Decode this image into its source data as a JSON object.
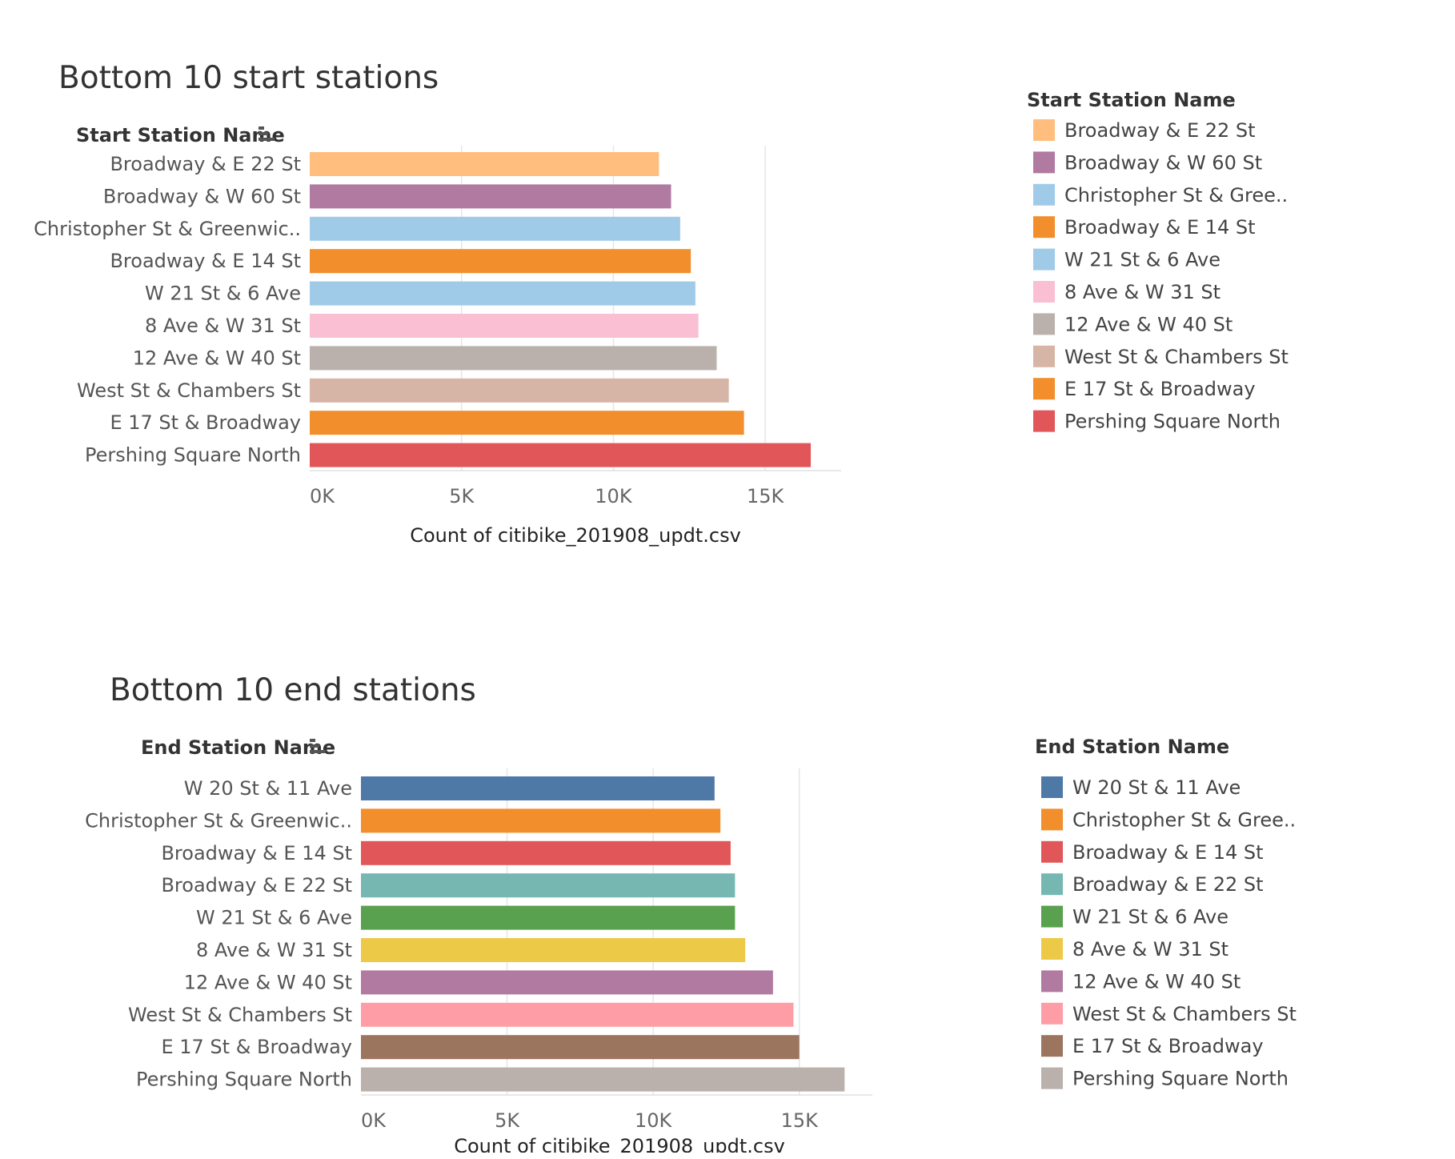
{
  "chart_data": [
    {
      "type": "bar",
      "orientation": "horizontal",
      "title": "Bottom 10 start stations",
      "category_field": "Start Station Name",
      "xlabel": "Count of citibike_201908_updt.csv",
      "xlim": [
        0,
        17500
      ],
      "xticks": [
        0,
        5000,
        10000,
        15000
      ],
      "xtick_labels": [
        "0K",
        "5K",
        "10K",
        "15K"
      ],
      "grid": "vertical",
      "legend_position": "right",
      "legend_title": "Start Station Name",
      "categories": [
        "Broadway & E 22 St",
        "Broadway & W 60 St",
        "Christopher St & Greenwic..",
        "Broadway & E 14 St",
        "W 21 St & 6 Ave",
        "8 Ave & W 31 St",
        "12 Ave & W 40 St",
        "West St & Chambers St",
        "E 17 St & Broadway",
        "Pershing Square North"
      ],
      "values": [
        11500,
        11900,
        12200,
        12550,
        12700,
        12800,
        13400,
        13800,
        14300,
        16500
      ],
      "colors": [
        "#ffbe7d",
        "#b07aa1",
        "#a0cbe8",
        "#f28e2b",
        "#a0cbe8",
        "#fabfd2",
        "#bab0ac",
        "#d7b5a6",
        "#f28e2b",
        "#e15759"
      ],
      "legend": [
        "Broadway & E 22 St",
        "Broadway & W 60 St",
        "Christopher St & Gree..",
        "Broadway & E 14 St",
        "W 21 St & 6 Ave",
        "8 Ave & W 31 St",
        "12 Ave & W 40 St",
        "West St & Chambers St",
        "E 17 St & Broadway",
        "Pershing Square North"
      ]
    },
    {
      "type": "bar",
      "orientation": "horizontal",
      "title": "Bottom 10 end stations",
      "category_field": "End Station Name",
      "xlabel": "Count of citibike_201908_updt.csv",
      "xlim": [
        0,
        17500
      ],
      "xticks": [
        0,
        5000,
        10000,
        15000
      ],
      "xtick_labels": [
        "0K",
        "5K",
        "10K",
        "15K"
      ],
      "grid": "vertical",
      "legend_position": "right",
      "legend_title": "End Station Name",
      "categories": [
        "W 20 St & 11 Ave",
        "Christopher St & Greenwic..",
        "Broadway & E 14 St",
        "Broadway & E 22 St",
        "W 21 St & 6 Ave",
        "8 Ave & W 31 St",
        "12 Ave & W 40 St",
        "West St & Chambers St",
        "E 17 St & Broadway",
        "Pershing Square North"
      ],
      "values": [
        12100,
        12300,
        12650,
        12800,
        12800,
        13150,
        14100,
        14800,
        15000,
        16550
      ],
      "colors": [
        "#4e79a7",
        "#f28e2b",
        "#e15759",
        "#76b7b2",
        "#59a14f",
        "#edc948",
        "#b07aa1",
        "#ff9da7",
        "#9c755f",
        "#bab0ac"
      ],
      "legend": [
        "W 20 St & 11 Ave",
        "Christopher St & Gree..",
        "Broadway & E 14 St",
        "Broadway & E 22 St",
        "W 21 St & 6 Ave",
        "8 Ave & W 31 St",
        "12 Ave & W 40 St",
        "West St & Chambers St",
        "E 17 St & Broadway",
        "Pershing Square North"
      ]
    }
  ]
}
